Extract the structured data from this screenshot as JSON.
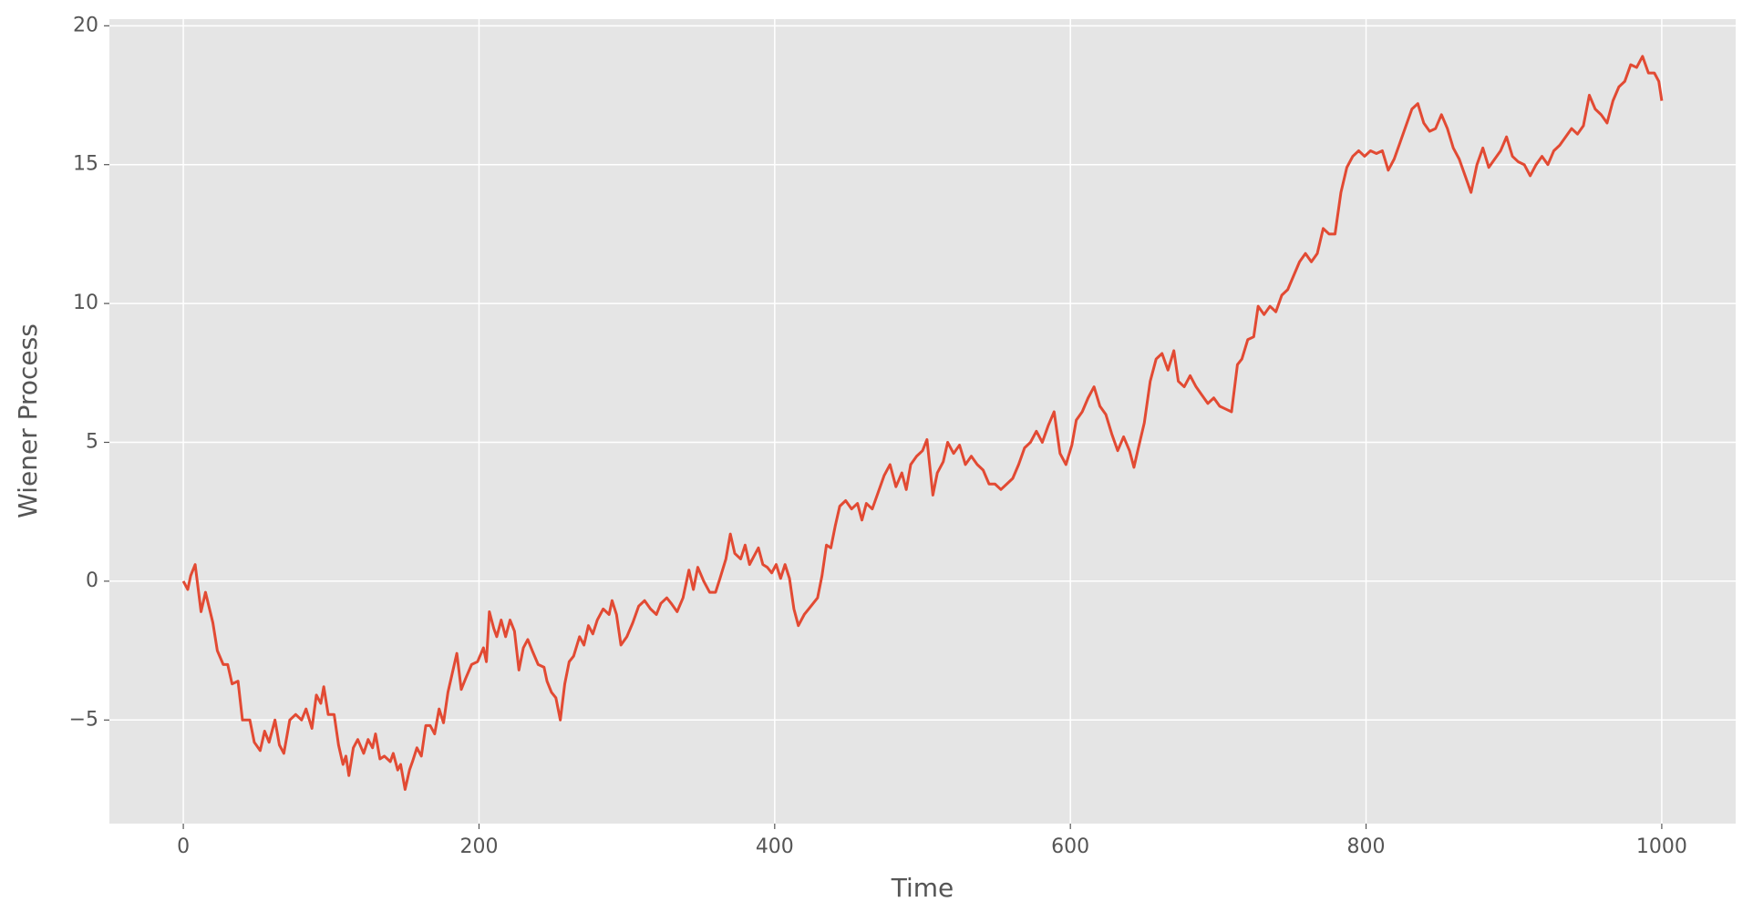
{
  "chart_data": {
    "type": "line",
    "xlabel": "Time",
    "ylabel": "Wiener Process",
    "x": [
      0,
      3,
      5,
      8,
      12,
      15,
      20,
      23,
      27,
      30,
      33,
      37,
      40,
      45,
      48,
      52,
      55,
      58,
      62,
      65,
      68,
      72,
      76,
      80,
      83,
      87,
      90,
      93,
      95,
      98,
      102,
      105,
      108,
      110,
      112,
      115,
      118,
      122,
      125,
      128,
      130,
      133,
      136,
      140,
      142,
      145,
      147,
      150,
      153,
      155,
      158,
      161,
      164,
      167,
      170,
      173,
      176,
      179,
      182,
      185,
      188,
      191,
      195,
      199,
      203,
      205,
      207,
      210,
      212,
      215,
      218,
      221,
      224,
      227,
      230,
      233,
      236,
      240,
      244,
      246,
      249,
      252,
      255,
      258,
      261,
      264,
      268,
      271,
      274,
      277,
      280,
      284,
      288,
      290,
      293,
      296,
      300,
      304,
      308,
      312,
      316,
      320,
      323,
      327,
      330,
      334,
      338,
      342,
      345,
      348,
      352,
      356,
      360,
      363,
      367,
      370,
      373,
      377,
      380,
      383,
      386,
      389,
      392,
      395,
      398,
      401,
      404,
      407,
      410,
      413,
      416,
      420,
      423,
      426,
      429,
      432,
      435,
      438,
      441,
      444,
      448,
      452,
      456,
      459,
      462,
      466,
      470,
      474,
      478,
      482,
      486,
      489,
      492,
      496,
      500,
      503,
      507,
      510,
      514,
      517,
      521,
      525,
      529,
      533,
      537,
      541,
      545,
      549,
      553,
      557,
      561,
      565,
      569,
      573,
      577,
      581,
      585,
      589,
      593,
      597,
      601,
      604,
      608,
      612,
      616,
      620,
      624,
      628,
      632,
      636,
      640,
      643,
      646,
      650,
      654,
      658,
      662,
      666,
      670,
      673,
      677,
      681,
      685,
      689,
      693,
      697,
      701,
      705,
      709,
      713,
      716,
      720,
      724,
      727,
      731,
      735,
      739,
      743,
      747,
      751,
      755,
      759,
      763,
      767,
      771,
      775,
      779,
      783,
      787,
      791,
      795,
      799,
      803,
      807,
      811,
      815,
      819,
      823,
      827,
      831,
      835,
      839,
      843,
      847,
      851,
      855,
      859,
      863,
      867,
      871,
      875,
      879,
      883,
      887,
      891,
      895,
      899,
      903,
      907,
      911,
      915,
      919,
      923,
      927,
      931,
      935,
      939,
      943,
      947,
      951,
      955,
      959,
      963,
      967,
      971,
      975,
      979,
      983,
      987,
      991,
      995,
      998,
      1000
    ],
    "series": [
      {
        "name": "Wiener Process",
        "color": "#e24a33",
        "values": [
          0,
          -0.3,
          0.2,
          0.6,
          -1.1,
          -0.4,
          -1.5,
          -2.5,
          -3.0,
          -3.0,
          -3.7,
          -3.6,
          -5.0,
          -5.0,
          -5.8,
          -6.1,
          -5.4,
          -5.8,
          -5.0,
          -5.9,
          -6.2,
          -5.0,
          -4.8,
          -5.0,
          -4.6,
          -5.3,
          -4.1,
          -4.4,
          -3.8,
          -4.8,
          -4.8,
          -5.9,
          -6.6,
          -6.3,
          -7.0,
          -6.0,
          -5.7,
          -6.2,
          -5.7,
          -6.0,
          -5.5,
          -6.4,
          -6.3,
          -6.5,
          -6.2,
          -6.8,
          -6.6,
          -7.5,
          -6.8,
          -6.5,
          -6.0,
          -6.3,
          -5.2,
          -5.2,
          -5.5,
          -4.6,
          -5.1,
          -4.0,
          -3.3,
          -2.6,
          -3.9,
          -3.5,
          -3.0,
          -2.9,
          -2.4,
          -2.9,
          -1.1,
          -1.7,
          -2.0,
          -1.4,
          -2.0,
          -1.4,
          -1.8,
          -3.2,
          -2.4,
          -2.1,
          -2.5,
          -3.0,
          -3.1,
          -3.6,
          -4.0,
          -4.2,
          -5.0,
          -3.7,
          -2.9,
          -2.7,
          -2.0,
          -2.3,
          -1.6,
          -1.9,
          -1.4,
          -1.0,
          -1.2,
          -0.7,
          -1.2,
          -2.3,
          -2.0,
          -1.5,
          -0.9,
          -0.7,
          -1.0,
          -1.2,
          -0.8,
          -0.6,
          -0.8,
          -1.1,
          -0.6,
          0.4,
          -0.3,
          0.5,
          0.0,
          -0.4,
          -0.4,
          0.1,
          0.8,
          1.7,
          1.0,
          0.8,
          1.3,
          0.6,
          0.9,
          1.2,
          0.6,
          0.5,
          0.3,
          0.6,
          0.1,
          0.6,
          0.1,
          -1.0,
          -1.6,
          -1.2,
          -1.0,
          -0.8,
          -0.6,
          0.2,
          1.3,
          1.2,
          2.0,
          2.7,
          2.9,
          2.6,
          2.8,
          2.2,
          2.8,
          2.6,
          3.2,
          3.8,
          4.2,
          3.4,
          3.9,
          3.3,
          4.2,
          4.5,
          4.7,
          5.1,
          3.1,
          3.9,
          4.3,
          5.0,
          4.6,
          4.9,
          4.2,
          4.5,
          4.2,
          4.0,
          3.5,
          3.5,
          3.3,
          3.5,
          3.7,
          4.2,
          4.8,
          5.0,
          5.4,
          5.0,
          5.6,
          6.1,
          4.6,
          4.2,
          4.9,
          5.8,
          6.1,
          6.6,
          7.0,
          6.3,
          6.0,
          5.3,
          4.7,
          5.2,
          4.7,
          4.1,
          4.8,
          5.7,
          7.2,
          8.0,
          8.2,
          7.6,
          8.3,
          7.2,
          7.0,
          7.4,
          7.0,
          6.7,
          6.4,
          6.6,
          6.3,
          6.2,
          6.1,
          7.8,
          8.0,
          8.7,
          8.8,
          9.9,
          9.6,
          9.9,
          9.7,
          10.3,
          10.5,
          11.0,
          11.5,
          11.8,
          11.5,
          11.8,
          12.7,
          12.5,
          12.5,
          14.0,
          14.9,
          15.3,
          15.5,
          15.3,
          15.5,
          15.4,
          15.5,
          14.8,
          15.2,
          15.8,
          16.4,
          17.0,
          17.2,
          16.5,
          16.2,
          16.3,
          16.8,
          16.3,
          15.6,
          15.2,
          14.6,
          14.0,
          15.0,
          15.6,
          14.9,
          15.2,
          15.5,
          16.0,
          15.3,
          15.1,
          15.0,
          14.6,
          15.0,
          15.3,
          15.0,
          15.5,
          15.7,
          16.0,
          16.3,
          16.1,
          16.4,
          17.5,
          17.0,
          16.8,
          16.5,
          17.3,
          17.8,
          18.0,
          18.6,
          18.5,
          18.9,
          18.3,
          18.3,
          18.0,
          17.3
        ]
      }
    ],
    "xlim": [
      -50,
      1050
    ],
    "xticks": [
      0,
      200,
      400,
      600,
      800,
      1000
    ],
    "ylim": [
      -8.73,
      20.24
    ],
    "yticks": [
      {
        "value": -5,
        "label": "−5"
      },
      0,
      5,
      10,
      15,
      20
    ],
    "grid": true
  }
}
